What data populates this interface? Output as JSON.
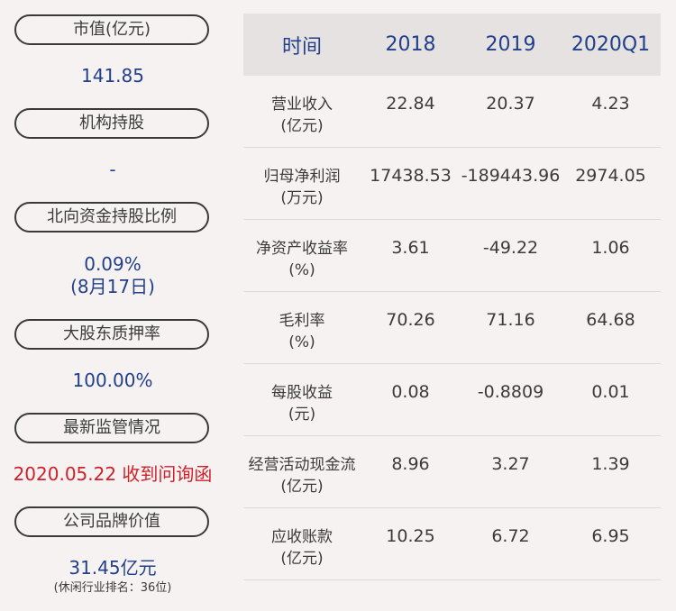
{
  "left": {
    "items": [
      {
        "label": "市值(亿元)",
        "value": "141.85"
      },
      {
        "label": "机构持股",
        "value": "-"
      },
      {
        "label": "北向资金持股比例",
        "value": "0.09%",
        "value2": "(8月17日)"
      },
      {
        "label": "大股东质押率",
        "value": "100.00%"
      },
      {
        "label": "最新监管情况",
        "value": "2020.05.22 收到问询函"
      },
      {
        "label": "公司品牌价值",
        "value": "31.45亿元",
        "note": "(休闲行业排名：36位)"
      }
    ]
  },
  "table": {
    "headers": [
      "时间",
      "2018",
      "2019",
      "2020Q1"
    ],
    "rows": [
      {
        "label1": "营业收入",
        "label2": "(亿元)",
        "v": [
          "22.84",
          "20.37",
          "4.23"
        ]
      },
      {
        "label1": "归母净利润",
        "label2": "(万元)",
        "v": [
          "17438.53",
          "-189443.96",
          "2974.05"
        ]
      },
      {
        "label1": "净资产收益率",
        "label2": "(%)",
        "v": [
          "3.61",
          "-49.22",
          "1.06"
        ]
      },
      {
        "label1": "毛利率",
        "label2": "(%)",
        "v": [
          "70.26",
          "71.16",
          "64.68"
        ]
      },
      {
        "label1": "每股收益",
        "label2": "(元)",
        "v": [
          "0.08",
          "-0.8809",
          "0.01"
        ]
      },
      {
        "label1": "经营活动现金流",
        "label2": "(亿元)",
        "v": [
          "8.96",
          "3.27",
          "1.39"
        ]
      },
      {
        "label1": "应收账款",
        "label2": "(亿元)",
        "v": [
          "10.25",
          "6.72",
          "6.95"
        ]
      }
    ]
  },
  "colors": {
    "background": "#f7f2f2",
    "header_bg": "#e6e2e2",
    "accent_blue": "#22408a",
    "alert_red": "#d0202a",
    "text": "#3b3b3b"
  }
}
